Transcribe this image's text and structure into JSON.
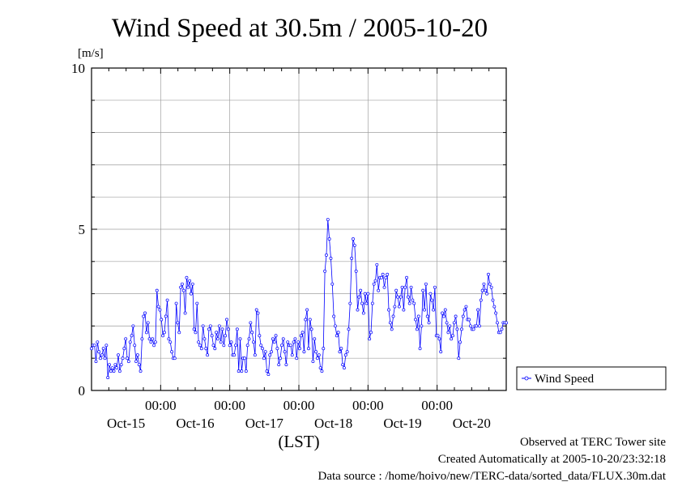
{
  "chart_data": {
    "type": "line",
    "title": "Wind Speed at 30.5m / 2005-10-20",
    "ylabel": "[m/s]",
    "xlabel": "(LST)",
    "ylim": [
      0,
      10
    ],
    "y_ticks": [
      "0",
      "5",
      "10"
    ],
    "x_range_days": [
      0,
      6
    ],
    "x_time_ticks": [
      {
        "day": 1,
        "label": "00:00"
      },
      {
        "day": 2,
        "label": "00:00"
      },
      {
        "day": 3,
        "label": "00:00"
      },
      {
        "day": 4,
        "label": "00:00"
      },
      {
        "day": 5,
        "label": "00:00"
      }
    ],
    "x_date_labels": [
      {
        "day": 0.5,
        "label": "Oct-15"
      },
      {
        "day": 1.5,
        "label": "Oct-16"
      },
      {
        "day": 2.5,
        "label": "Oct-17"
      },
      {
        "day": 3.5,
        "label": "Oct-18"
      },
      {
        "day": 4.5,
        "label": "Oct-19"
      },
      {
        "day": 5.5,
        "label": "Oct-20"
      }
    ],
    "grid": true,
    "legend_position": "right",
    "series": [
      {
        "name": "Wind Speed",
        "color": "#0000ff",
        "values": [
          1.3,
          1.4,
          1.4,
          0.9,
          1.5,
          1.2,
          1.0,
          1.1,
          1.3,
          1.0,
          1.4,
          0.4,
          0.8,
          0.6,
          0.7,
          0.6,
          0.8,
          0.7,
          1.1,
          0.6,
          0.8,
          1.0,
          1.3,
          1.6,
          1.0,
          0.9,
          1.5,
          1.7,
          2.0,
          1.4,
          0.9,
          1.1,
          0.8,
          0.6,
          1.6,
          2.3,
          2.4,
          1.8,
          2.1,
          1.6,
          1.5,
          1.6,
          1.4,
          1.5,
          3.1,
          2.6,
          2.5,
          2.2,
          1.7,
          1.8,
          2.3,
          2.8,
          1.6,
          1.5,
          1.2,
          1.0,
          1.0,
          2.7,
          2.1,
          1.8,
          3.2,
          3.3,
          3.1,
          2.4,
          3.5,
          3.2,
          3.4,
          3.0,
          3.3,
          1.9,
          1.8,
          2.7,
          1.5,
          1.4,
          1.3,
          2.0,
          1.6,
          1.3,
          1.1,
          1.9,
          2.0,
          1.7,
          1.4,
          1.3,
          1.8,
          1.6,
          2.0,
          1.5,
          1.9,
          1.4,
          1.7,
          2.2,
          1.9,
          1.4,
          1.5,
          1.1,
          1.1,
          1.4,
          1.9,
          0.6,
          1.6,
          0.6,
          1.0,
          1.0,
          0.6,
          1.4,
          1.6,
          2.1,
          1.8,
          1.5,
          1.1,
          2.5,
          2.4,
          1.7,
          1.4,
          1.3,
          1.0,
          1.2,
          0.6,
          0.5,
          1.1,
          1.2,
          1.6,
          1.5,
          1.7,
          1.3,
          0.8,
          1.0,
          1.4,
          1.6,
          1.2,
          0.8,
          1.5,
          1.4,
          1.4,
          1.1,
          1.5,
          1.6,
          1.0,
          1.5,
          1.3,
          1.7,
          1.8,
          1.2,
          2.2,
          2.5,
          1.3,
          2.2,
          1.9,
          0.9,
          1.6,
          1.2,
          1.0,
          1.1,
          0.7,
          0.6,
          1.3,
          3.7,
          4.2,
          5.3,
          4.7,
          4.1,
          3.3,
          2.3,
          2.0,
          1.7,
          1.8,
          1.2,
          1.3,
          0.8,
          0.7,
          1.1,
          1.2,
          1.9,
          2.7,
          4.1,
          4.7,
          4.5,
          3.7,
          2.5,
          2.9,
          3.1,
          2.7,
          2.4,
          3.0,
          2.7,
          3.0,
          1.6,
          1.8,
          2.7,
          3.3,
          3.4,
          3.9,
          3.1,
          3.5,
          3.5,
          3.6,
          3.2,
          3.5,
          3.6,
          2.5,
          2.1,
          1.9,
          2.3,
          2.6,
          3.1,
          2.9,
          2.6,
          2.9,
          3.2,
          2.5,
          3.2,
          3.5,
          2.9,
          2.7,
          3.2,
          2.8,
          2.7,
          2.2,
          1.9,
          2.3,
          1.3,
          2.0,
          3.1,
          2.5,
          3.3,
          2.3,
          2.1,
          3.0,
          2.8,
          2.5,
          3.2,
          1.7,
          1.7,
          1.6,
          1.2,
          2.4,
          2.3,
          2.5,
          2.1,
          1.8,
          2.0,
          1.6,
          1.7,
          2.1,
          2.3,
          1.9,
          1.0,
          1.5,
          1.9,
          2.3,
          2.5,
          2.6,
          2.2,
          2.2,
          2.0,
          1.9,
          1.9,
          2.0,
          2.0,
          2.5,
          2.0,
          2.8,
          3.1,
          3.3,
          3.1,
          3.0,
          3.6,
          3.3,
          3.2,
          2.8,
          2.6,
          2.4,
          2.1,
          1.8,
          1.8,
          1.9,
          2.1,
          2.1,
          2.1
        ]
      }
    ]
  },
  "footer": {
    "line1": "Observed at TERC Tower site",
    "line2": "Created Automatically at 2005-10-20/23:32:18",
    "line3": "Data source : /home/hoivo/new/TERC-data/sorted_data/FLUX.30m.dat"
  }
}
